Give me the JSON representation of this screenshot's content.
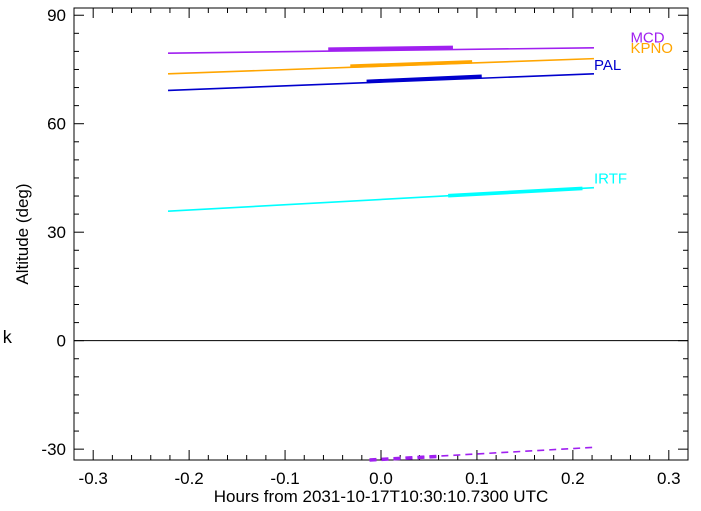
{
  "chart_data": {
    "type": "line",
    "title": "",
    "xlabel": "Hours from 2031-10-17T10:30:10.7300 UTC",
    "ylabel": "Altitude (deg)",
    "xlim": [
      -0.32,
      0.32
    ],
    "ylim": [
      -33,
      92
    ],
    "x_ticks": [
      -0.3,
      -0.2,
      -0.1,
      0.0,
      0.1,
      0.2,
      0.3
    ],
    "x_tick_labels": [
      "-0.3",
      "-0.2",
      "-0.1",
      "0.0",
      "0.1",
      "0.2",
      "0.3"
    ],
    "y_ticks": [
      -30,
      0,
      30,
      60,
      90
    ],
    "y_tick_labels": [
      "-30",
      "0",
      "30",
      "60",
      "90"
    ],
    "horizon_line": 0,
    "grid": false,
    "stray_text": "k",
    "series": [
      {
        "name": "MCD",
        "color": "#a020f0",
        "x": [
          -0.222,
          0.222
        ],
        "y": [
          79.5,
          81.0
        ],
        "thick_x": [
          -0.055,
          0.075
        ],
        "thick_y": [
          80.6,
          81.1
        ],
        "label_at": [
          0.26,
          82.5
        ]
      },
      {
        "name": "KPNO",
        "color": "#ffa500",
        "x": [
          -0.222,
          0.222
        ],
        "y": [
          73.8,
          78.0
        ],
        "thick_x": [
          -0.032,
          0.095
        ],
        "thick_y": [
          75.9,
          77.1
        ],
        "label_at": [
          0.26,
          79.5
        ]
      },
      {
        "name": "PAL",
        "color": "#0000cd",
        "x": [
          -0.222,
          0.222
        ],
        "y": [
          69.2,
          73.8
        ],
        "thick_x": [
          -0.015,
          0.105
        ],
        "thick_y": [
          71.7,
          73.1
        ],
        "label_at": [
          0.222,
          74.8
        ]
      },
      {
        "name": "IRTF",
        "color": "#00ffff",
        "x": [
          -0.222,
          0.222
        ],
        "y": [
          35.8,
          42.3
        ],
        "thick_x": [
          0.07,
          0.21
        ],
        "thick_y": [
          40.1,
          42.1
        ],
        "label_at": [
          0.222,
          43.5
        ]
      },
      {
        "name": "",
        "color": "#a020f0",
        "dashed": true,
        "x": [
          -0.012,
          0.222
        ],
        "y": [
          -33.0,
          -29.5
        ],
        "thick_x": [
          -0.012,
          0.06
        ],
        "thick_y": [
          -33.0,
          -32.0
        ]
      }
    ]
  }
}
